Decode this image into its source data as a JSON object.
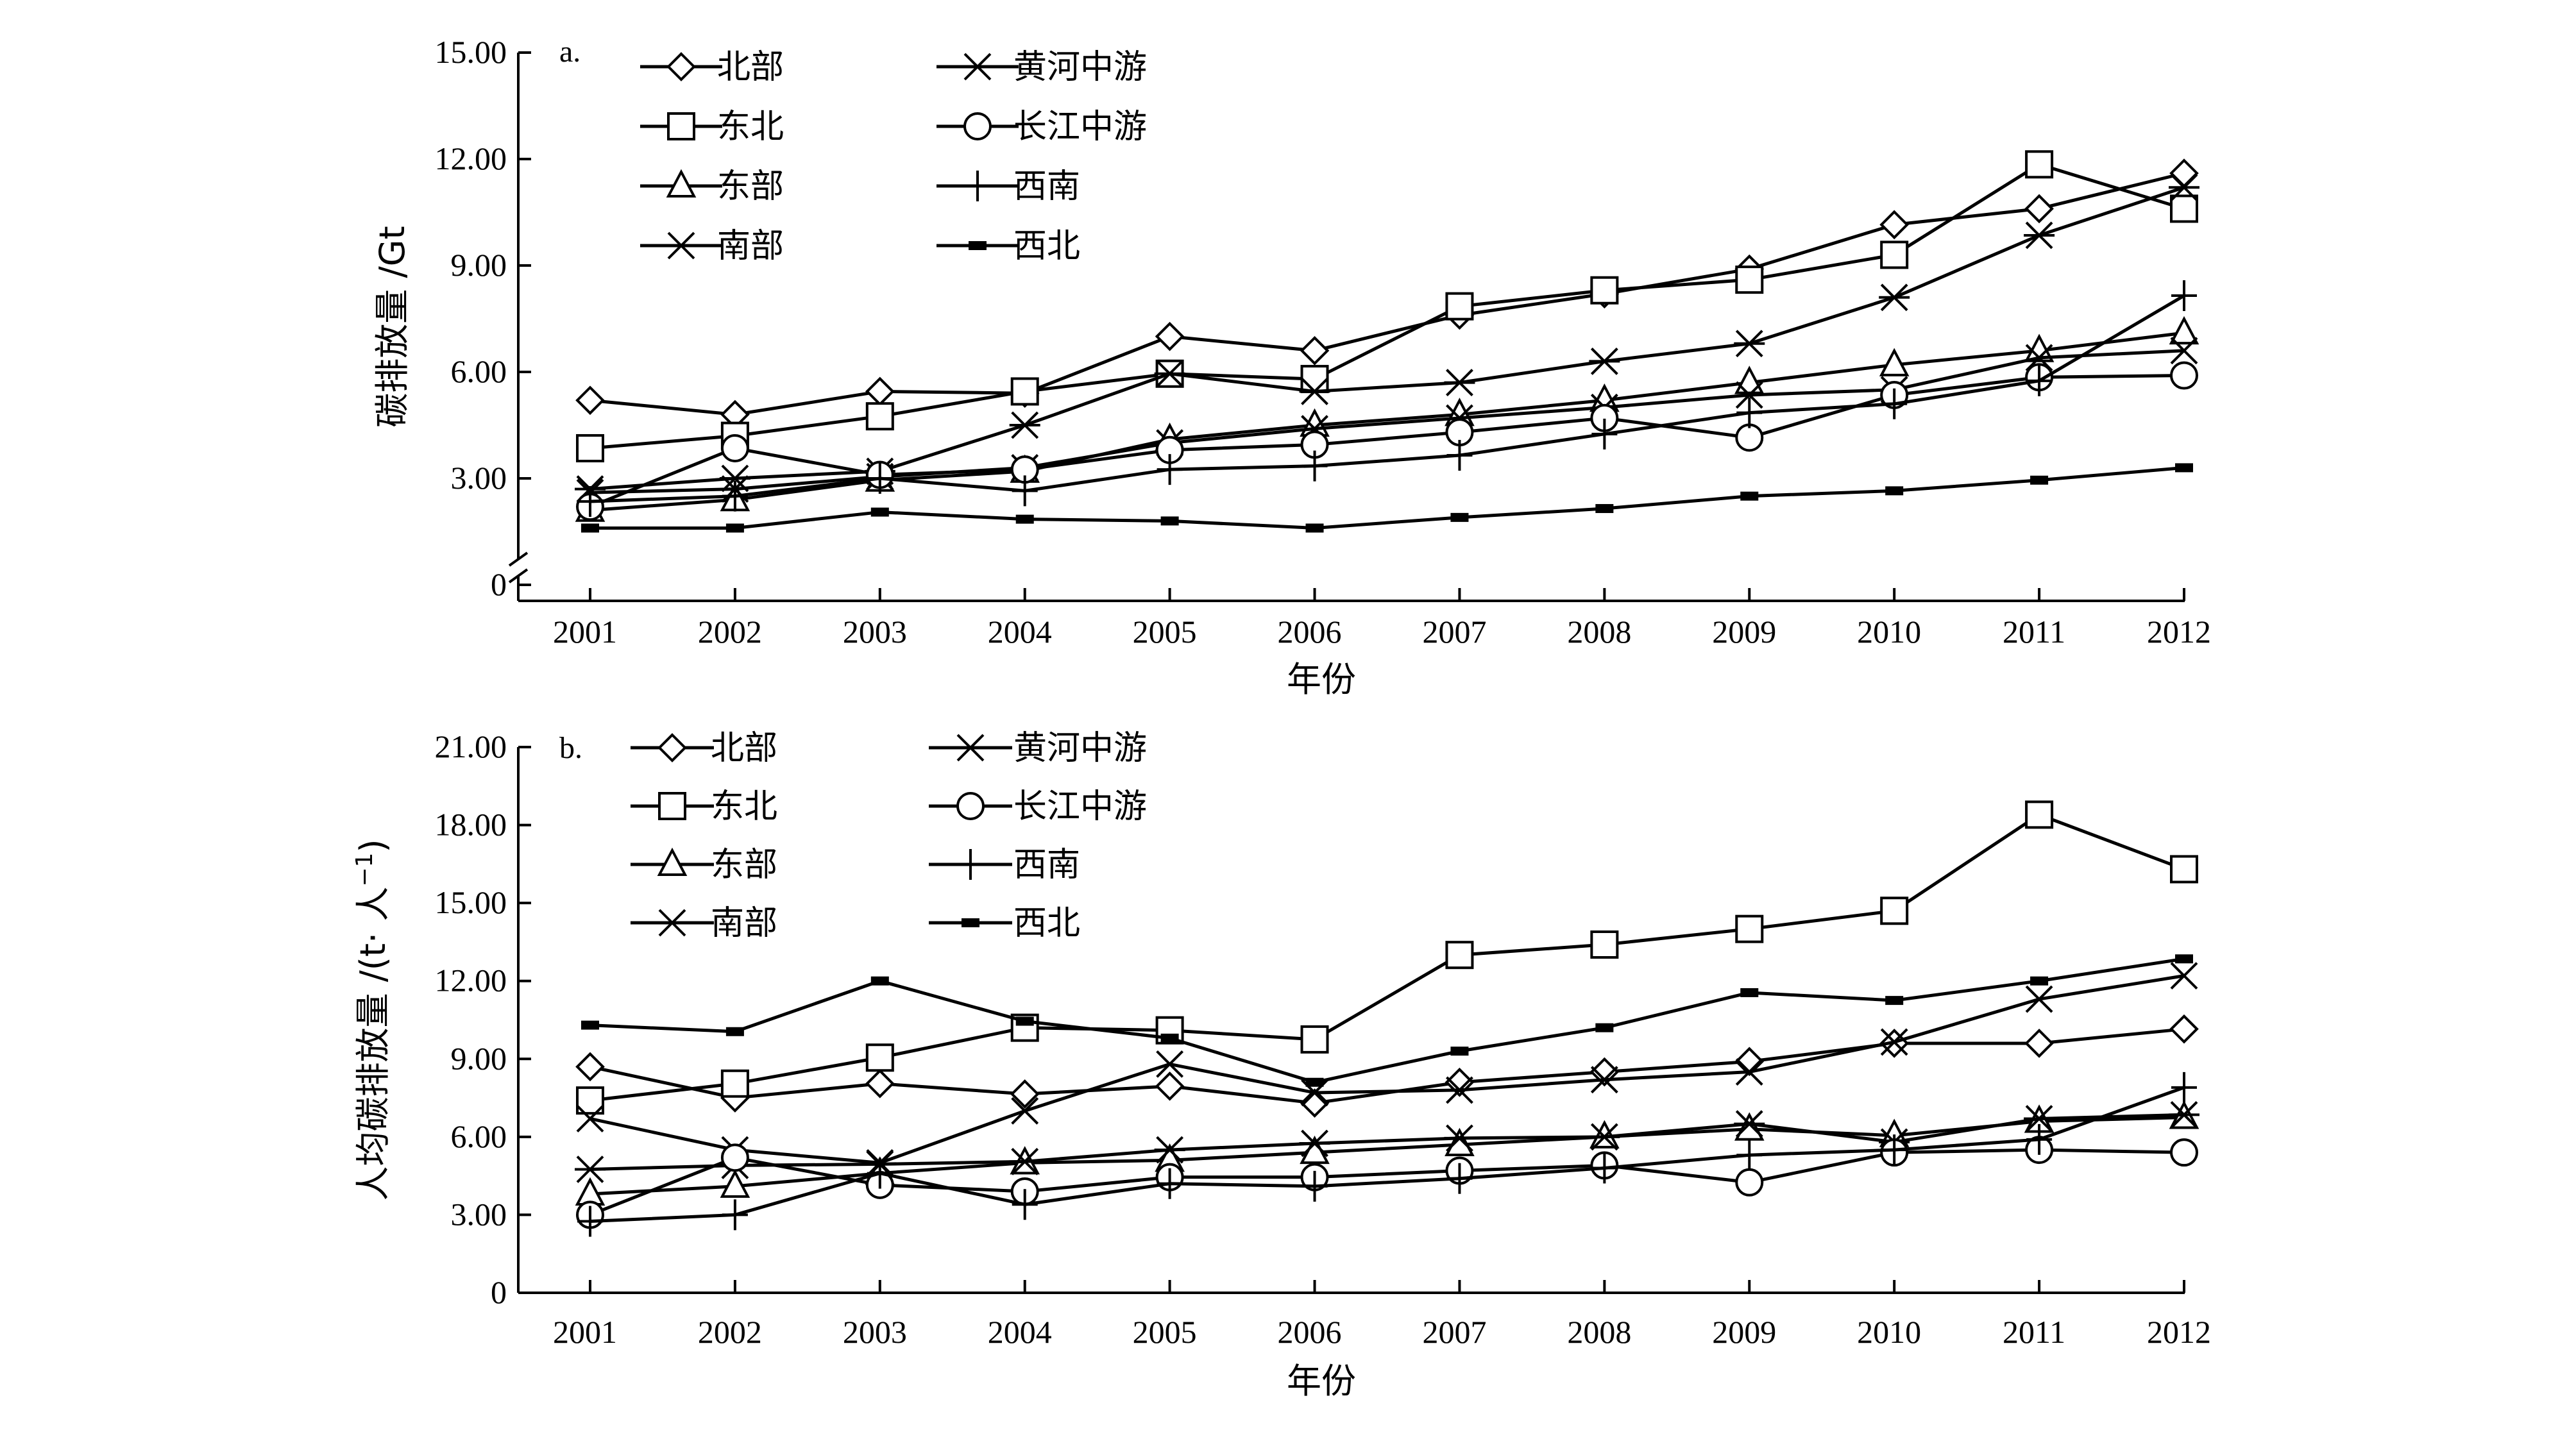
{
  "chart_data": [
    {
      "panel": "a.",
      "type": "line",
      "ylabel": "碳排放量 /Gt",
      "xlabel": "年份",
      "ylim": [
        0,
        15
      ],
      "ybreak": true,
      "yticks": [
        0,
        3,
        6,
        9,
        12,
        15
      ],
      "ytick_labels": [
        "0",
        "3.00",
        "6.00",
        "9.00",
        "12.00",
        "15.00"
      ],
      "categories": [
        "2001",
        "2002",
        "2003",
        "2004",
        "2005",
        "2006",
        "2007",
        "2008",
        "2009",
        "2010",
        "2011",
        "2012"
      ],
      "legend": "top-left",
      "series": [
        {
          "name": "北部",
          "marker": "diamond",
          "values": [
            5.2,
            4.8,
            5.45,
            5.4,
            7.0,
            6.6,
            7.6,
            8.2,
            8.9,
            10.15,
            10.6,
            11.6
          ]
        },
        {
          "name": "东北",
          "marker": "square",
          "values": [
            3.85,
            4.2,
            4.75,
            5.45,
            5.95,
            5.8,
            7.85,
            8.3,
            8.6,
            9.3,
            11.85,
            10.6
          ]
        },
        {
          "name": "东部",
          "marker": "triangle",
          "values": [
            2.1,
            2.4,
            2.95,
            3.2,
            4.1,
            4.5,
            4.8,
            5.2,
            5.7,
            6.2,
            6.6,
            7.1
          ]
        },
        {
          "name": "南部",
          "marker": "x",
          "values": [
            2.6,
            2.7,
            3.05,
            3.3,
            4.0,
            4.4,
            4.7,
            5.0,
            5.35,
            5.5,
            6.4,
            6.6
          ]
        },
        {
          "name": "黄河中游",
          "marker": "star",
          "values": [
            2.7,
            3.0,
            3.2,
            4.5,
            5.95,
            5.45,
            5.7,
            6.3,
            6.8,
            8.1,
            9.85,
            11.2
          ]
        },
        {
          "name": "长江中游",
          "marker": "circle",
          "values": [
            2.2,
            3.85,
            3.1,
            3.25,
            3.8,
            3.95,
            4.3,
            4.7,
            4.15,
            5.35,
            5.85,
            5.9
          ]
        },
        {
          "name": "西南",
          "marker": "plus",
          "values": [
            2.35,
            2.5,
            3.0,
            2.65,
            3.25,
            3.35,
            3.65,
            4.25,
            4.85,
            5.1,
            5.75,
            8.15
          ]
        },
        {
          "name": "西北",
          "marker": "dash",
          "values": [
            1.6,
            1.6,
            2.05,
            1.85,
            1.8,
            1.6,
            1.9,
            2.15,
            2.5,
            2.65,
            2.95,
            3.3
          ]
        }
      ]
    },
    {
      "panel": "b.",
      "type": "line",
      "ylabel": "人均碳排放量 /(t· 人",
      "ylabel_sup": "−1",
      "ylabel_close": ")",
      "xlabel": "年份",
      "ylim": [
        0,
        21
      ],
      "ybreak": false,
      "yticks": [
        0,
        3,
        6,
        9,
        12,
        15,
        18,
        21
      ],
      "ytick_labels": [
        "0",
        "3.00",
        "6.00",
        "9.00",
        "12.00",
        "15.00",
        "18.00",
        "21.00"
      ],
      "categories": [
        "2001",
        "2002",
        "2003",
        "2004",
        "2005",
        "2006",
        "2007",
        "2008",
        "2009",
        "2010",
        "2011",
        "2012"
      ],
      "legend": "top-left",
      "series": [
        {
          "name": "北部",
          "marker": "diamond",
          "values": [
            8.7,
            7.5,
            8.05,
            7.65,
            7.95,
            7.3,
            8.1,
            8.5,
            8.9,
            9.6,
            9.6,
            10.15
          ]
        },
        {
          "name": "东北",
          "marker": "square",
          "values": [
            7.4,
            8.05,
            9.05,
            10.2,
            10.1,
            9.75,
            13.0,
            13.4,
            14.0,
            14.7,
            18.4,
            16.3
          ]
        },
        {
          "name": "东部",
          "marker": "triangle",
          "values": [
            3.8,
            4.1,
            4.6,
            5.0,
            5.1,
            5.4,
            5.7,
            6.0,
            6.3,
            6.05,
            6.6,
            6.75
          ]
        },
        {
          "name": "南部",
          "marker": "x",
          "values": [
            6.7,
            5.5,
            5.0,
            7.0,
            8.8,
            7.7,
            7.8,
            8.2,
            8.5,
            9.65,
            11.3,
            12.2
          ]
        },
        {
          "name": "黄河中游",
          "marker": "star",
          "values": [
            4.75,
            4.9,
            4.95,
            5.05,
            5.5,
            5.75,
            5.95,
            6.0,
            6.5,
            5.8,
            6.7,
            6.85
          ]
        },
        {
          "name": "长江中游",
          "marker": "circle",
          "values": [
            3.0,
            5.2,
            4.15,
            3.9,
            4.45,
            4.45,
            4.7,
            4.9,
            4.25,
            5.4,
            5.5,
            5.4
          ]
        },
        {
          "name": "西南",
          "marker": "plus",
          "values": [
            2.75,
            3.0,
            4.6,
            3.4,
            4.2,
            4.1,
            4.4,
            4.8,
            5.3,
            5.5,
            5.9,
            7.9
          ]
        },
        {
          "name": "西北",
          "marker": "dash",
          "values": [
            10.3,
            10.05,
            12.0,
            10.45,
            9.8,
            8.1,
            9.3,
            10.2,
            11.55,
            11.25,
            12.0,
            12.85
          ]
        }
      ]
    }
  ]
}
